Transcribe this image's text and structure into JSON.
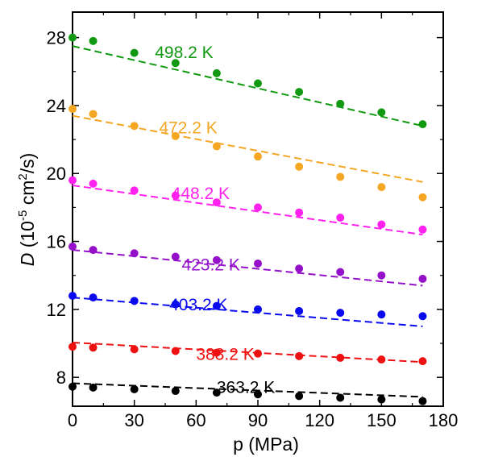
{
  "chart_data": {
    "type": "scatter",
    "xlabel": "p (MPa)",
    "ylabel": {
      "symbol": "D",
      "prefix": " (10",
      "exponent1": "-5",
      "middle": " cm",
      "exponent2": "2",
      "suffix": "/s)"
    },
    "xlim": [
      0,
      180
    ],
    "ylim": [
      6.3,
      29.5
    ],
    "xticks": [
      0,
      30,
      60,
      90,
      120,
      150,
      180
    ],
    "yticks": [
      8,
      12,
      16,
      20,
      24,
      28
    ],
    "grid": false,
    "legend": "inline labels",
    "series": [
      {
        "name": "498.2 K",
        "color": "#119911",
        "x": [
          0,
          10,
          30,
          50,
          70,
          90,
          110,
          130,
          150,
          170
        ],
        "y": [
          28.0,
          27.8,
          27.1,
          26.5,
          25.9,
          25.3,
          24.8,
          24.1,
          23.6,
          22.9
        ],
        "fit": [
          [
            0,
            27.5
          ],
          [
            170,
            22.8
          ]
        ]
      },
      {
        "name": "472.2 K",
        "color": "#f5a623",
        "x": [
          0,
          10,
          30,
          50,
          70,
          90,
          110,
          130,
          150,
          170
        ],
        "y": [
          23.8,
          23.5,
          22.8,
          22.2,
          21.6,
          21.0,
          20.4,
          19.8,
          19.2,
          18.6
        ],
        "fit": [
          [
            0,
            23.4
          ],
          [
            170,
            19.5
          ]
        ]
      },
      {
        "name": "448.2 K",
        "color": "#ff22ee",
        "x": [
          0,
          10,
          30,
          50,
          70,
          90,
          110,
          130,
          150,
          170
        ],
        "y": [
          19.6,
          19.4,
          19.0,
          18.7,
          18.3,
          18.0,
          17.7,
          17.4,
          17.0,
          16.7
        ],
        "fit": [
          [
            0,
            19.3
          ],
          [
            170,
            16.4
          ]
        ]
      },
      {
        "name": "423.2 K",
        "color": "#9411c9",
        "x": [
          0,
          10,
          30,
          50,
          70,
          90,
          110,
          130,
          150,
          170
        ],
        "y": [
          15.7,
          15.5,
          15.3,
          15.1,
          14.9,
          14.7,
          14.4,
          14.2,
          14.0,
          13.8
        ],
        "fit": [
          [
            0,
            15.5
          ],
          [
            170,
            13.4
          ]
        ]
      },
      {
        "name": "403.2 K",
        "color": "#0a0aee",
        "x": [
          0,
          10,
          30,
          50,
          70,
          90,
          110,
          130,
          150,
          170
        ],
        "y": [
          12.8,
          12.7,
          12.5,
          12.3,
          12.2,
          12.0,
          11.9,
          11.8,
          11.7,
          11.6
        ],
        "fit": [
          [
            0,
            12.7
          ],
          [
            170,
            11.0
          ]
        ]
      },
      {
        "name": "383.2 K",
        "color": "#ee1111",
        "x": [
          0,
          10,
          30,
          50,
          70,
          90,
          110,
          130,
          150,
          170
        ],
        "y": [
          9.8,
          9.75,
          9.65,
          9.55,
          9.45,
          9.4,
          9.25,
          9.15,
          9.05,
          8.95
        ],
        "fit": [
          [
            0,
            10.05
          ],
          [
            170,
            8.9
          ]
        ]
      },
      {
        "name": "363.2 K",
        "color": "#000000",
        "x": [
          0,
          10,
          30,
          50,
          70,
          90,
          110,
          130,
          150,
          170
        ],
        "y": [
          7.45,
          7.4,
          7.3,
          7.2,
          7.1,
          7.0,
          6.9,
          6.8,
          6.7,
          6.6
        ],
        "fit": [
          [
            0,
            7.65
          ],
          [
            170,
            6.85
          ]
        ]
      }
    ]
  }
}
